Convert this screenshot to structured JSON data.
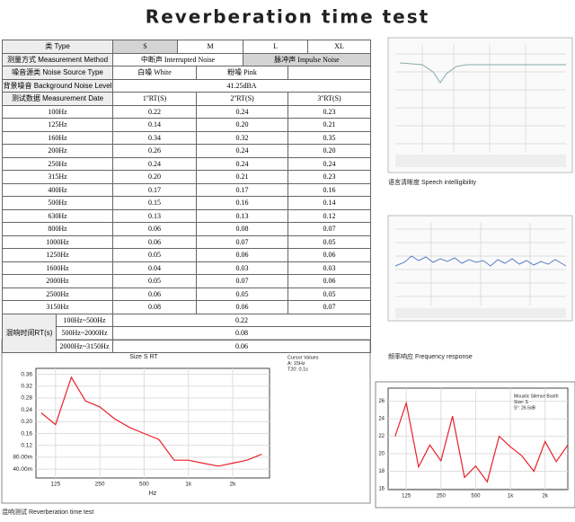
{
  "title": "Reverberation time test",
  "table": {
    "header": [
      "类 Type",
      "S",
      "M",
      "L",
      "XL"
    ],
    "method": [
      "测量方式 Measurement Method",
      "中断声 Interrupted Noise",
      "脉冲声 Impulse Noise"
    ],
    "noise_source": [
      "噪音源类 Noise Source Type",
      "白噪 White",
      "粉噪 Pink"
    ],
    "background": [
      "背景噪音 Background Noise Level",
      "41.25dBA"
    ],
    "date": [
      "测试数据 Measurement Date",
      "1''RT(S)",
      "2''RT(S)",
      "3''RT(S)"
    ],
    "rows": [
      [
        "100Hz",
        "0.22",
        "0.24",
        "0.23"
      ],
      [
        "125Hz",
        "0.14",
        "0.20",
        "0.21"
      ],
      [
        "160Hz",
        "0.34",
        "0.32",
        "0.35"
      ],
      [
        "200Hz",
        "0.26",
        "0.24",
        "0.20"
      ],
      [
        "250Hz",
        "0.24",
        "0.24",
        "0.24"
      ],
      [
        "315Hz",
        "0.20",
        "0.21",
        "0.23"
      ],
      [
        "400Hz",
        "0.17",
        "0.17",
        "0.16"
      ],
      [
        "500Hz",
        "0.15",
        "0.16",
        "0.14"
      ],
      [
        "630Hz",
        "0.13",
        "0.13",
        "0.12"
      ],
      [
        "800Hz",
        "0.06",
        "0.08",
        "0.07"
      ],
      [
        "1000Hz",
        "0.06",
        "0.07",
        "0.05"
      ],
      [
        "1250Hz",
        "0.05",
        "0.06",
        "0.06"
      ],
      [
        "1600Hz",
        "0.04",
        "0.03",
        "0.03"
      ],
      [
        "2000Hz",
        "0.05",
        "0.07",
        "0.06"
      ],
      [
        "2500Hz",
        "0.06",
        "0.05",
        "0.05"
      ],
      [
        "3150Hz",
        "0.08",
        "0.06",
        "0.07"
      ]
    ],
    "summary": {
      "label": "混响时间RT(s)",
      "rows": [
        [
          "100Hz~500Hz",
          "0.22"
        ],
        [
          "500Hz~2000Hz",
          "0.08"
        ],
        [
          "2000Hz~3150Hz",
          "0.06"
        ]
      ]
    }
  },
  "captions": {
    "speech": "语言清晰度 Speech intelligibility",
    "frequency": "频率响应 Frequency response",
    "rt": "混响测试 Reverberation time test"
  },
  "chart_data": [
    {
      "type": "line",
      "title": "Size S RT",
      "notes": [
        "Cursor Values",
        "A: 15Hz",
        "T20: 0.1s"
      ],
      "xlabel": "Hz",
      "log_x": true,
      "color": "#e8202a",
      "x": [
        100,
        125,
        160,
        200,
        250,
        315,
        400,
        500,
        630,
        800,
        1000,
        1250,
        1600,
        2000,
        2500,
        3150
      ],
      "values": [
        0.23,
        0.19,
        0.35,
        0.27,
        0.25,
        0.21,
        0.18,
        0.16,
        0.14,
        0.07,
        0.07,
        0.06,
        0.05,
        0.06,
        0.07,
        0.09
      ],
      "xlim": [
        92,
        3560
      ],
      "ylim": [
        0.01,
        0.38
      ],
      "xticks": [
        125,
        250,
        500,
        {
          "value": 1000,
          "label": "1k"
        },
        {
          "value": 2000,
          "label": "2k"
        }
      ],
      "yticks": [
        {
          "value": 0.04,
          "label": "40.00m"
        },
        {
          "value": 0.08,
          "label": "80.00m"
        },
        0.12,
        0.16,
        {
          "value": 0.2,
          "label": "0.20"
        },
        0.24,
        0.28,
        0.32,
        0.36
      ],
      "grid": true
    },
    {
      "type": "line",
      "notes": [
        "Moustic Silence Booth",
        "Size: S",
        "S°: 26.5dB"
      ],
      "log_x": true,
      "color": "#e8202a",
      "x": [
        100,
        125,
        160,
        200,
        250,
        315,
        400,
        500,
        630,
        800,
        1000,
        1250,
        1600,
        2000,
        2500,
        3150
      ],
      "values": [
        22,
        25.8,
        18.5,
        21,
        19.2,
        24.3,
        17.3,
        18.6,
        16.8,
        22,
        20.8,
        19.8,
        18,
        21.4,
        19.1,
        21
      ],
      "xlim": [
        87,
        3150
      ],
      "ylim": [
        15.9,
        27.5
      ],
      "xticks": [
        125,
        250,
        500,
        {
          "value": 1000,
          "label": "1k"
        },
        {
          "value": 2000,
          "label": "2k"
        }
      ],
      "yticks": [
        16,
        18,
        20,
        22,
        24,
        26
      ],
      "grid": true
    }
  ]
}
